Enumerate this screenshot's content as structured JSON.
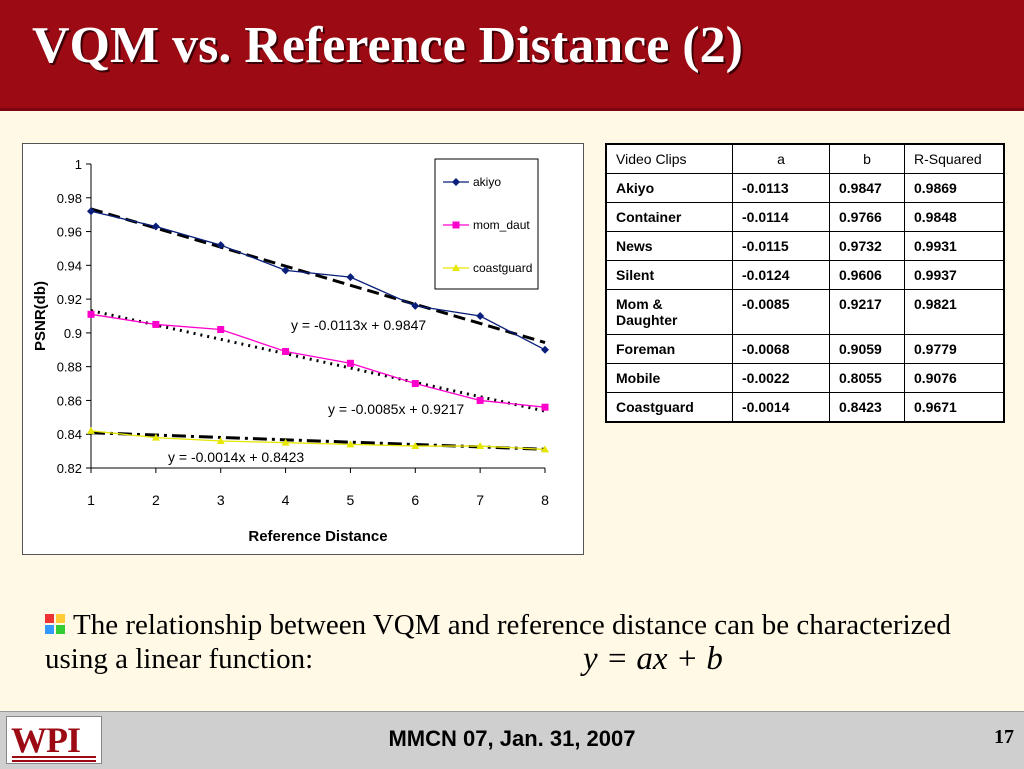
{
  "slide": {
    "title": "VQM vs. Reference Distance (2)",
    "bullet_text": "The relationship between VQM and reference distance can be characterized using a linear function:",
    "formula": "y = ax + b",
    "footer": "MMCN 07, Jan. 31, 2007",
    "slide_number": "17",
    "logo_text": "WPI"
  },
  "chart_data": {
    "type": "line",
    "xlabel": "Reference Distance",
    "ylabel": "PSNR(db)",
    "ylim": [
      0.82,
      1
    ],
    "yticks": [
      "0.82",
      "0.84",
      "0.86",
      "0.88",
      "0.9",
      "0.92",
      "0.94",
      "0.96",
      "0.98",
      "1"
    ],
    "x": [
      1,
      2,
      3,
      4,
      5,
      6,
      7,
      8
    ],
    "xticks": [
      "1",
      "2",
      "3",
      "4",
      "5",
      "6",
      "7",
      "8"
    ],
    "legend_position": "top-right",
    "series": [
      {
        "name": "akiyo",
        "color": "#0a1f7a",
        "marker": "diamond",
        "values": [
          0.972,
          0.963,
          0.952,
          0.937,
          0.933,
          0.916,
          0.91,
          0.89
        ],
        "trend": {
          "slope": -0.0113,
          "intercept": 0.9847,
          "style": "dash",
          "label": "y = -0.0113x + 0.9847"
        }
      },
      {
        "name": "mom_daut",
        "color": "#ff00cc",
        "marker": "square",
        "values": [
          0.911,
          0.905,
          0.902,
          0.889,
          0.882,
          0.87,
          0.86,
          0.856
        ],
        "trend": {
          "slope": -0.0085,
          "intercept": 0.9217,
          "style": "dot",
          "label": "y = -0.0085x + 0.9217"
        }
      },
      {
        "name": "coastguard",
        "color": "#e6e600",
        "marker": "triangle",
        "values": [
          0.842,
          0.838,
          0.836,
          0.835,
          0.834,
          0.833,
          0.833,
          0.831
        ],
        "trend": {
          "slope": -0.0014,
          "intercept": 0.8423,
          "style": "dashdot",
          "label": "y = -0.0014x + 0.8423"
        }
      }
    ]
  },
  "table": {
    "headers": [
      "Video Clips",
      "a",
      "b",
      "R-Squared"
    ],
    "rows": [
      [
        "Akiyo",
        "-0.0113",
        "0.9847",
        "0.9869"
      ],
      [
        "Container",
        "-0.0114",
        "0.9766",
        "0.9848"
      ],
      [
        "News",
        "-0.0115",
        "0.9732",
        "0.9931"
      ],
      [
        "Silent",
        "-0.0124",
        "0.9606",
        "0.9937"
      ],
      [
        "Mom & Daughter",
        "-0.0085",
        "0.9217",
        "0.9821"
      ],
      [
        "Foreman",
        "-0.0068",
        "0.9059",
        "0.9779"
      ],
      [
        "Mobile",
        "-0.0022",
        "0.8055",
        "0.9076"
      ],
      [
        "Coastguard",
        "-0.0014",
        "0.8423",
        "0.9671"
      ]
    ]
  }
}
